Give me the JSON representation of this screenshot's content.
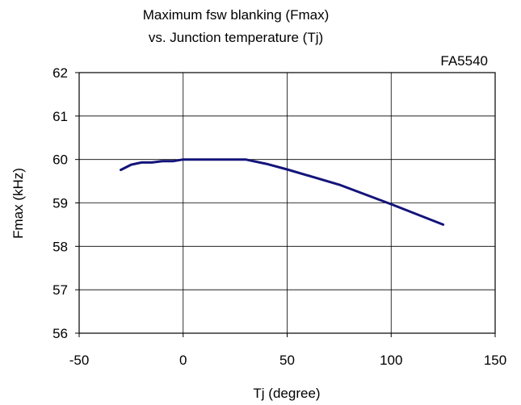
{
  "chart_data": {
    "type": "line",
    "title": [
      "Maximum fsw blanking (Fmax)",
      "vs. Junction temperature (Tj)"
    ],
    "annotation": "FA5540",
    "xlabel": "Tj (degree)",
    "ylabel": "Fmax (kHz)",
    "xlim": [
      -50,
      150
    ],
    "ylim": [
      56,
      62
    ],
    "xticks": [
      -50,
      0,
      50,
      100,
      150
    ],
    "yticks": [
      56,
      57,
      58,
      59,
      60,
      61,
      62
    ],
    "grid": true,
    "series": [
      {
        "color": "#14147a",
        "x": [
          -30,
          -25,
          -20,
          -15,
          -10,
          -5,
          0,
          10,
          20,
          30,
          40,
          50,
          75,
          100,
          125
        ],
        "y": [
          59.76,
          59.88,
          59.93,
          59.93,
          59.96,
          59.96,
          60.0,
          60.0,
          60.0,
          60.0,
          59.9,
          59.77,
          59.42,
          58.97,
          58.5
        ]
      }
    ]
  }
}
